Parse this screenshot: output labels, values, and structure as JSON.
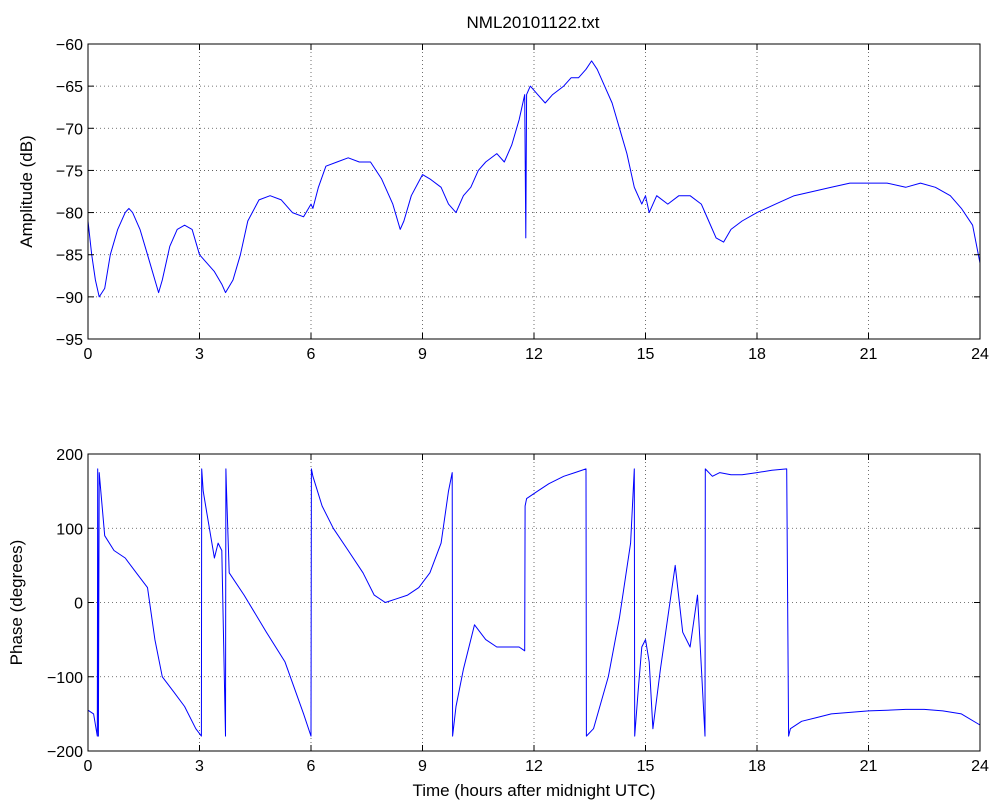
{
  "chart_data": [
    {
      "type": "line",
      "title": "NML20101122.txt",
      "xlabel": "",
      "ylabel": "Amplitude (dB)",
      "xlim": [
        0,
        24
      ],
      "ylim": [
        -95,
        -60
      ],
      "xticks": [
        0,
        3,
        6,
        9,
        12,
        15,
        18,
        21,
        24
      ],
      "yticks": [
        -95,
        -90,
        -85,
        -80,
        -75,
        -70,
        -65,
        -60
      ],
      "grid": true,
      "color": "#0000ff",
      "series": [
        {
          "name": "",
          "x": [
            0,
            0.1,
            0.2,
            0.3,
            0.45,
            0.6,
            0.8,
            1.0,
            1.1,
            1.2,
            1.4,
            1.6,
            1.8,
            1.9,
            2.0,
            2.2,
            2.4,
            2.6,
            2.8,
            3.0,
            3.2,
            3.4,
            3.6,
            3.7,
            3.9,
            4.1,
            4.3,
            4.6,
            4.9,
            5.2,
            5.5,
            5.8,
            6.0,
            6.05,
            6.2,
            6.4,
            6.7,
            7.0,
            7.3,
            7.6,
            7.9,
            8.2,
            8.4,
            8.5,
            8.7,
            9.0,
            9.2,
            9.5,
            9.7,
            9.9,
            10.1,
            10.3,
            10.5,
            10.7,
            11.0,
            11.2,
            11.4,
            11.6,
            11.75,
            11.78,
            11.8,
            11.9,
            12.1,
            12.3,
            12.5,
            12.8,
            13.0,
            13.2,
            13.4,
            13.55,
            13.7,
            13.9,
            14.1,
            14.3,
            14.5,
            14.7,
            14.9,
            15.0,
            15.1,
            15.3,
            15.6,
            15.9,
            16.2,
            16.5,
            16.7,
            16.9,
            17.1,
            17.3,
            17.6,
            18.0,
            18.5,
            19.0,
            19.5,
            20.0,
            20.5,
            21.0,
            21.5,
            22.0,
            22.4,
            22.8,
            23.2,
            23.5,
            23.8,
            24.0
          ],
          "y": [
            -81,
            -85,
            -88,
            -90,
            -89,
            -85,
            -82,
            -80,
            -79.5,
            -80,
            -82,
            -85,
            -88,
            -89.5,
            -88,
            -84,
            -82,
            -81.5,
            -82,
            -85,
            -86,
            -87,
            -88.5,
            -89.5,
            -88,
            -85,
            -81,
            -78.5,
            -78,
            -78.5,
            -80,
            -80.5,
            -79,
            -79.5,
            -77,
            -74.5,
            -74,
            -73.5,
            -74,
            -74,
            -76,
            -79,
            -82,
            -81,
            -78,
            -75.5,
            -76,
            -77,
            -79,
            -80,
            -78,
            -77,
            -75,
            -74,
            -73,
            -74,
            -72,
            -69,
            -66,
            -83,
            -66,
            -65,
            -66,
            -67,
            -66,
            -65,
            -64,
            -64,
            -63,
            -62,
            -63,
            -65,
            -67,
            -70,
            -73,
            -77,
            -79,
            -78,
            -80,
            -78,
            -79,
            -78,
            -78,
            -79,
            -81,
            -83,
            -83.5,
            -82,
            -81,
            -80,
            -79,
            -78,
            -77.5,
            -77,
            -76.5,
            -76.5,
            -76.5,
            -77,
            -76.5,
            -77,
            -78,
            -79.5,
            -81.5,
            -86
          ]
        }
      ]
    },
    {
      "type": "line",
      "title": "",
      "xlabel": "Time (hours after midnight UTC)",
      "ylabel": "Phase (degrees)",
      "xlim": [
        0,
        24
      ],
      "ylim": [
        -200,
        200
      ],
      "xticks": [
        0,
        3,
        6,
        9,
        12,
        15,
        18,
        21,
        24
      ],
      "yticks": [
        -200,
        -100,
        0,
        100,
        200
      ],
      "grid": true,
      "color": "#0000ff",
      "series": [
        {
          "name": "",
          "x": [
            0,
            0.15,
            0.25,
            0.26,
            0.28,
            0.3,
            0.45,
            0.7,
            1.0,
            1.3,
            1.6,
            1.8,
            2.0,
            2.3,
            2.6,
            2.9,
            3.05,
            3.06,
            3.1,
            3.2,
            3.4,
            3.5,
            3.6,
            3.7,
            3.71,
            3.72,
            3.8,
            4.2,
            4.8,
            5.3,
            5.8,
            6.0,
            6.01,
            6.05,
            6.3,
            6.6,
            7.0,
            7.4,
            7.7,
            8.0,
            8.3,
            8.6,
            8.9,
            9.2,
            9.5,
            9.7,
            9.8,
            9.81,
            9.9,
            10.1,
            10.4,
            10.7,
            11.0,
            11.3,
            11.6,
            11.75,
            11.76,
            11.8,
            12.1,
            12.4,
            12.8,
            13.1,
            13.4,
            13.41,
            13.6,
            14.0,
            14.3,
            14.6,
            14.7,
            14.71,
            14.8,
            14.9,
            15.0,
            15.1,
            15.2,
            15.4,
            15.6,
            15.8,
            16.0,
            16.2,
            16.4,
            16.6,
            16.61,
            16.8,
            17.0,
            17.3,
            17.6,
            18.0,
            18.4,
            18.8,
            18.85,
            18.9,
            19.2,
            19.6,
            20.0,
            20.5,
            21.0,
            21.5,
            22.0,
            22.5,
            23.0,
            23.5,
            24.0
          ],
          "y": [
            -145,
            -150,
            -180,
            180,
            -180,
            175,
            90,
            70,
            60,
            40,
            20,
            -50,
            -100,
            -120,
            -140,
            -170,
            -180,
            180,
            150,
            120,
            60,
            80,
            70,
            -180,
            180,
            160,
            40,
            10,
            -40,
            -80,
            -150,
            -180,
            180,
            170,
            130,
            100,
            70,
            40,
            10,
            0,
            5,
            10,
            20,
            40,
            80,
            150,
            175,
            -180,
            -140,
            -90,
            -30,
            -50,
            -60,
            -60,
            -60,
            -65,
            130,
            140,
            150,
            160,
            170,
            175,
            180,
            -180,
            -170,
            -100,
            -20,
            80,
            180,
            -180,
            -120,
            -60,
            -50,
            -80,
            -170,
            -90,
            -20,
            50,
            -40,
            -60,
            10,
            -180,
            180,
            170,
            175,
            172,
            172,
            175,
            178,
            180,
            -180,
            -170,
            -160,
            -155,
            -150,
            -148,
            -146,
            -145,
            -144,
            -144,
            -146,
            -150,
            -165
          ]
        }
      ]
    }
  ]
}
